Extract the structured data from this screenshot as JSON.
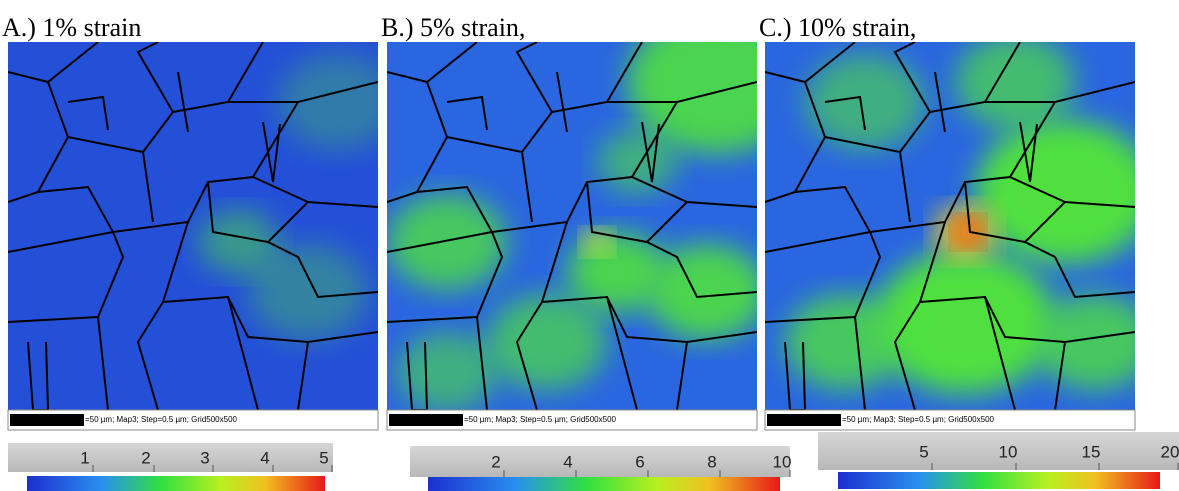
{
  "panels": [
    {
      "label": "A.) 1% strain",
      "scale_text": "=50 µm; Map3; Step=0.5 µm; Grid500x500",
      "colorbar_ticks": [
        "1",
        "2",
        "3",
        "4",
        "5"
      ]
    },
    {
      "label": "B.) 5% strain,",
      "scale_text": "=50 µm; Map3; Step=0.5 µm; Grid500x500",
      "colorbar_ticks": [
        "2",
        "4",
        "6",
        "8",
        "10"
      ]
    },
    {
      "label": "C.) 10% strain,",
      "scale_text": "=50 µm; Map3; Step=0.5 µm; Grid500x500",
      "colorbar_ticks": [
        "5",
        "10",
        "15",
        "20"
      ]
    }
  ]
}
